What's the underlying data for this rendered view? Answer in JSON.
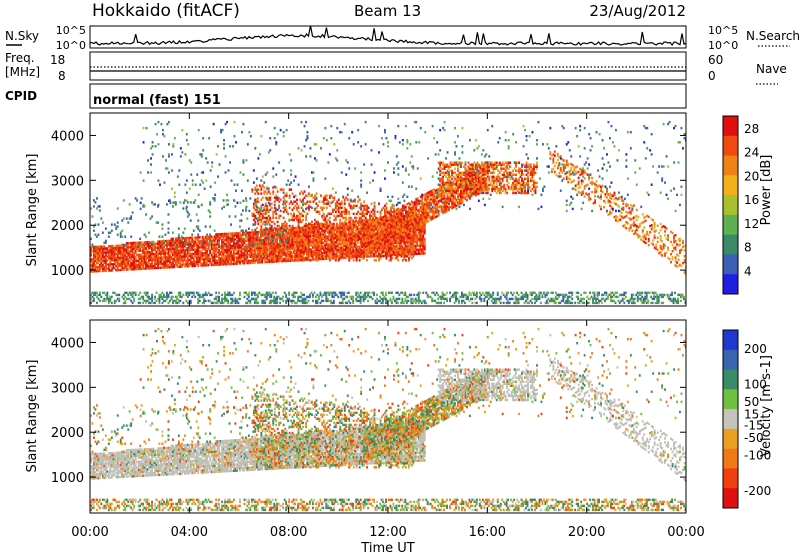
{
  "header": {
    "station": "Hokkaido (fitACF)",
    "beam": "Beam 13",
    "date": "23/Aug/2012"
  },
  "noise_panel": {
    "left_label": "N.Sky",
    "right_label": "N.Search",
    "left_ticks": [
      "10^5",
      "10^0"
    ],
    "right_ticks": [
      "10^5",
      "10^0"
    ]
  },
  "freq_panel": {
    "left_label_line1": "Freq.",
    "left_label_line2": "[MHz]",
    "right_label": "Nave",
    "left_ticks": [
      "18",
      "8"
    ],
    "right_ticks": [
      "60",
      "0"
    ]
  },
  "cpid_panel": {
    "label": "CPID",
    "value": "normal (fast) 151"
  },
  "colors": {
    "power_scale": [
      "#1f1fe0",
      "#3a5fb5",
      "#3a8a6a",
      "#5fb050",
      "#a8c030",
      "#f2b01a",
      "#f08018",
      "#f04a10",
      "#e01010"
    ],
    "velocity_scale": [
      "#2038d0",
      "#3a64b0",
      "#3a8c68",
      "#70c040",
      "#c4c4bc",
      "#eaa020",
      "#f07a18",
      "#f04010",
      "#e01010"
    ],
    "ground_scatter": "#c0c0b8"
  },
  "chart_data": [
    {
      "type": "heatmap",
      "title": "",
      "xlabel": "",
      "ylabel": "Slant Range [km]",
      "xlim": [
        "00:00",
        "00:00"
      ],
      "ylim": [
        200,
        4500
      ],
      "yticks": [
        1000,
        2000,
        3000,
        4000
      ],
      "xticks": [
        "00:00",
        "04:00",
        "08:00",
        "12:00",
        "16:00",
        "20:00",
        "00:00"
      ],
      "colorbar": {
        "label": "Power [dB]",
        "ticks": [
          4,
          8,
          12,
          16,
          20,
          24,
          28
        ],
        "range": [
          0,
          30
        ]
      }
    },
    {
      "type": "heatmap",
      "title": "",
      "xlabel": "Time UT",
      "ylabel": "Slant Range [km]",
      "xlim": [
        "00:00",
        "00:00"
      ],
      "ylim": [
        200,
        4500
      ],
      "yticks": [
        1000,
        2000,
        3000,
        4000
      ],
      "xticks": [
        "00:00",
        "04:00",
        "08:00",
        "12:00",
        "16:00",
        "20:00",
        "00:00"
      ],
      "colorbar": {
        "label": "Velocity [m s-1]",
        "ticks": [
          200,
          100,
          50,
          15,
          -15,
          -50,
          -100,
          -200
        ],
        "range": [
          -250,
          250
        ]
      }
    }
  ]
}
